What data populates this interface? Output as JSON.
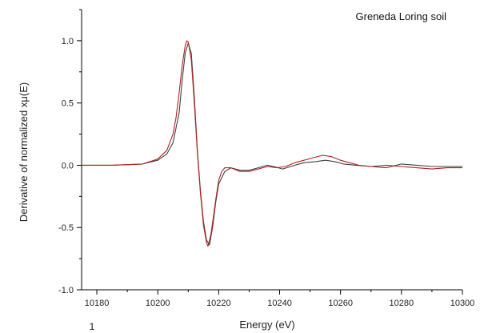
{
  "chart_data": {
    "type": "line",
    "title": "",
    "annotation": "Greneda Loring soil",
    "xlabel": "Energy (eV)",
    "ylabel": "Derivative of normalized xμ(E)",
    "xlim": [
      10175,
      10300
    ],
    "ylim": [
      -1.0,
      1.25
    ],
    "xticks": [
      10180,
      10200,
      10220,
      10240,
      10260,
      10280,
      10300
    ],
    "yticks": [
      -1.0,
      -0.5,
      0.0,
      0.5,
      1.0
    ],
    "ytick_labels": [
      "-1.0",
      "-0.5",
      "0.0",
      "0.5",
      "1.0"
    ],
    "stray_mark": "1",
    "grid": false,
    "series": [
      {
        "color": "#404040",
        "points": [
          [
            10175,
            0.0
          ],
          [
            10185,
            0.0
          ],
          [
            10195,
            0.01
          ],
          [
            10200,
            0.04
          ],
          [
            10203,
            0.09
          ],
          [
            10205,
            0.18
          ],
          [
            10207,
            0.42
          ],
          [
            10208,
            0.68
          ],
          [
            10209,
            0.9
          ],
          [
            10210,
            0.98
          ],
          [
            10211,
            0.9
          ],
          [
            10212,
            0.55
          ],
          [
            10213,
            0.12
          ],
          [
            10214,
            -0.2
          ],
          [
            10215,
            -0.45
          ],
          [
            10216,
            -0.6
          ],
          [
            10217,
            -0.64
          ],
          [
            10218,
            -0.5
          ],
          [
            10219,
            -0.3
          ],
          [
            10220,
            -0.15
          ],
          [
            10222,
            -0.05
          ],
          [
            10224,
            -0.02
          ],
          [
            10227,
            -0.04
          ],
          [
            10230,
            -0.04
          ],
          [
            10233,
            -0.02
          ],
          [
            10236,
            0.0
          ],
          [
            10238,
            -0.01
          ],
          [
            10241,
            -0.03
          ],
          [
            10245,
            0.0
          ],
          [
            10248,
            0.02
          ],
          [
            10252,
            0.03
          ],
          [
            10255,
            0.04
          ],
          [
            10258,
            0.03
          ],
          [
            10261,
            0.01
          ],
          [
            10265,
            0.0
          ],
          [
            10270,
            -0.01
          ],
          [
            10275,
            -0.02
          ],
          [
            10280,
            0.01
          ],
          [
            10285,
            0.0
          ],
          [
            10290,
            -0.01
          ],
          [
            10295,
            -0.01
          ],
          [
            10300,
            -0.01
          ]
        ]
      },
      {
        "color": "#b22222",
        "points": [
          [
            10175,
            0.0
          ],
          [
            10185,
            0.0
          ],
          [
            10195,
            0.01
          ],
          [
            10200,
            0.05
          ],
          [
            10203,
            0.12
          ],
          [
            10205,
            0.25
          ],
          [
            10206,
            0.38
          ],
          [
            10207,
            0.58
          ],
          [
            10208,
            0.8
          ],
          [
            10209,
            0.96
          ],
          [
            10209.5,
            1.0
          ],
          [
            10210,
            0.99
          ],
          [
            10211,
            0.85
          ],
          [
            10212,
            0.5
          ],
          [
            10213,
            0.1
          ],
          [
            10214,
            -0.22
          ],
          [
            10215,
            -0.48
          ],
          [
            10216,
            -0.62
          ],
          [
            10216.5,
            -0.65
          ],
          [
            10217.5,
            -0.55
          ],
          [
            10219,
            -0.28
          ],
          [
            10220,
            -0.12
          ],
          [
            10221,
            -0.05
          ],
          [
            10222,
            -0.02
          ],
          [
            10224,
            -0.02
          ],
          [
            10227,
            -0.05
          ],
          [
            10230,
            -0.05
          ],
          [
            10233,
            -0.03
          ],
          [
            10236,
            -0.01
          ],
          [
            10239,
            -0.02
          ],
          [
            10242,
            -0.01
          ],
          [
            10245,
            0.02
          ],
          [
            10248,
            0.04
          ],
          [
            10251,
            0.06
          ],
          [
            10254,
            0.08
          ],
          [
            10257,
            0.07
          ],
          [
            10260,
            0.04
          ],
          [
            10263,
            0.02
          ],
          [
            10266,
            0.0
          ],
          [
            10270,
            -0.01
          ],
          [
            10275,
            0.0
          ],
          [
            10280,
            -0.01
          ],
          [
            10285,
            -0.02
          ],
          [
            10290,
            -0.03
          ],
          [
            10295,
            -0.02
          ],
          [
            10300,
            -0.02
          ]
        ]
      }
    ]
  }
}
